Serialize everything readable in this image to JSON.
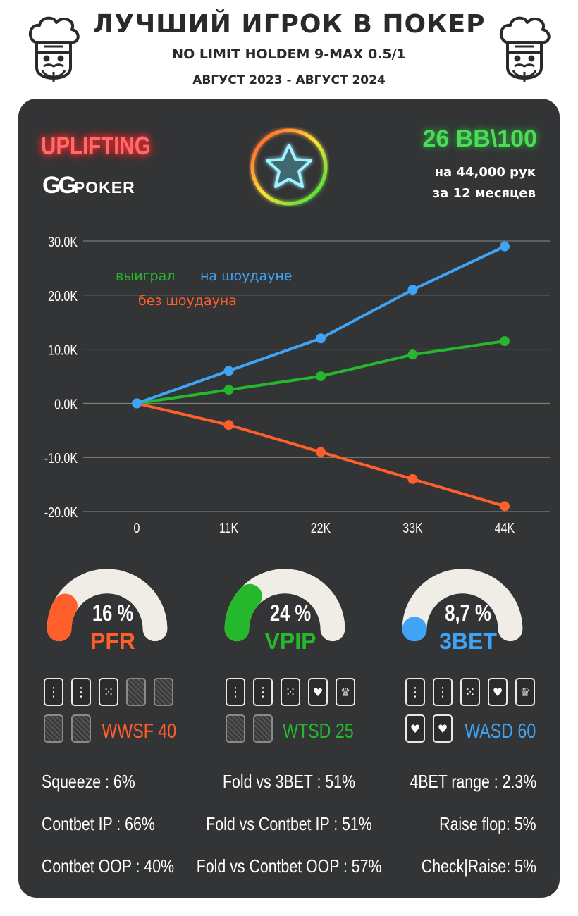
{
  "header": {
    "title": "ЛУЧШИЙ ИГРОК В ПОКЕР",
    "subtitle": "NO LIMIT HOLDEM 9-MAX 0.5/1",
    "period": "АВГУСТ 2023 - АВГУСТ 2024"
  },
  "player": {
    "name": "UPLIFTING",
    "room_logo_mark": "GG",
    "room_logo_text": "POKER",
    "winrate": "26 BB\\100",
    "hands": "на 44,000 рук",
    "months": "за  12 месяцев"
  },
  "colors": {
    "blue": "#3fa4f5",
    "green": "#25b82c",
    "orange": "#ff5f2a",
    "panel": "#333436",
    "gauge_track": "#f0ece6"
  },
  "chart_data": {
    "type": "line",
    "x": [
      0,
      11000,
      22000,
      33000,
      44000
    ],
    "x_tick_labels": [
      "0",
      "11K",
      "22K",
      "33K",
      "44K"
    ],
    "y_tick_labels": [
      "30.0K",
      "20.0K",
      "10.0K",
      "0.0K",
      "-10.0K",
      "-20.0K"
    ],
    "y_ticks": [
      30000,
      20000,
      10000,
      0,
      -10000,
      -20000
    ],
    "ylim": [
      -20000,
      30000
    ],
    "grid": true,
    "series": [
      {
        "name": "на шоудауне",
        "color": "#3fa4f5",
        "values": [
          0,
          6000,
          12000,
          21000,
          29000
        ]
      },
      {
        "name": "выиграл",
        "color": "#25b82c",
        "values": [
          0,
          2500,
          5000,
          9000,
          11500
        ]
      },
      {
        "name": "без шоудауна",
        "color": "#ff5f2a",
        "values": [
          0,
          -4000,
          -9000,
          -14000,
          -19000
        ]
      }
    ]
  },
  "gauges": [
    {
      "label": "PFR",
      "value_text": "16 %",
      "value": 16,
      "color": "#ff5f2a"
    },
    {
      "label": "VPIP",
      "value_text": "24 %",
      "value": 24,
      "color": "#25b82c"
    },
    {
      "label": "3BET",
      "value_text": "8,7 %",
      "value": 8.7,
      "color": "#3fa4f5"
    }
  ],
  "postflop": [
    {
      "label": "WWSF 40",
      "color": "#ff5f2a",
      "value": 40
    },
    {
      "label": "WTSD 25",
      "color": "#25b82c",
      "value": 25
    },
    {
      "label": "WASD 60",
      "color": "#3fa4f5",
      "value": 60
    }
  ],
  "metrics": {
    "left": [
      "Squeeze : 6%",
      "Contbet IP : 66%",
      "Contbet OOP : 40%"
    ],
    "center": [
      "Fold vs 3BET : 51%",
      "Fold vs Contbet IP : 51%",
      "Fold vs Contbet OOP : 57%"
    ],
    "right": [
      "4BET range : 2.3%",
      "Raise flop: 5%",
      "Check|Raise: 5%"
    ]
  }
}
